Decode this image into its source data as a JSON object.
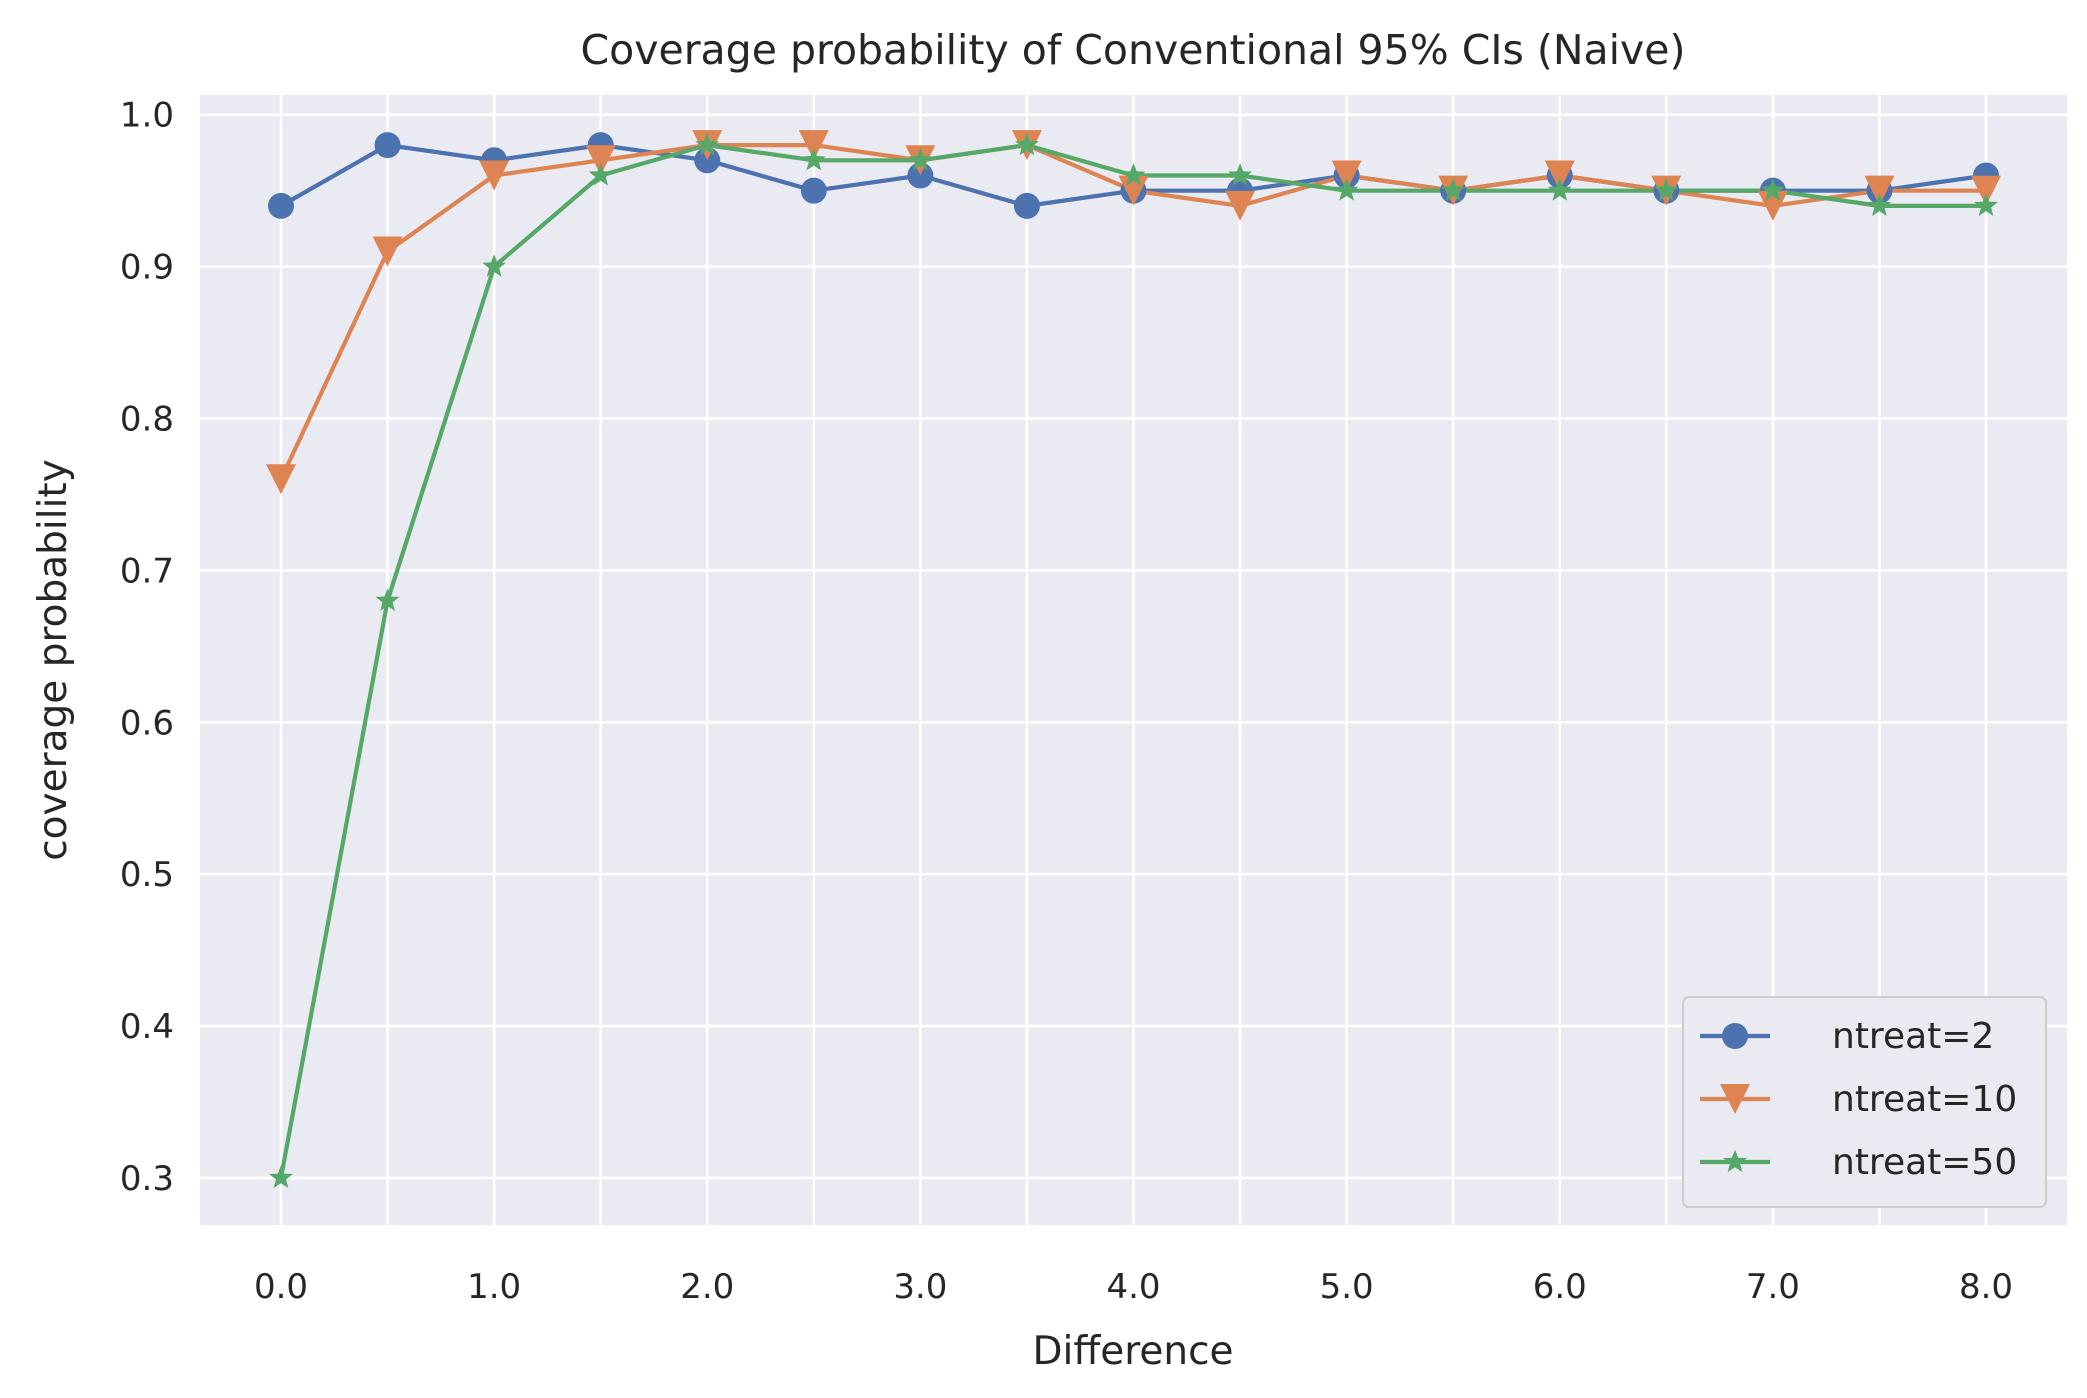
{
  "chart_data": {
    "type": "line",
    "title": "Coverage probability of Conventional 95% CIs (Naive)",
    "xlabel": "Difference",
    "ylabel": "coverage probability",
    "x": [
      0.0,
      0.5,
      1.0,
      1.5,
      2.0,
      2.5,
      3.0,
      3.5,
      4.0,
      4.5,
      5.0,
      5.5,
      6.0,
      6.5,
      7.0,
      7.5,
      8.0
    ],
    "xlim": [
      -0.38,
      8.38
    ],
    "ylim": [
      0.269,
      1.013
    ],
    "x_ticks": [
      0,
      1,
      2,
      3,
      4,
      5,
      6,
      7,
      8
    ],
    "x_tick_labels": [
      "0.0",
      "1.0",
      "2.0",
      "3.0",
      "4.0",
      "5.0",
      "6.0",
      "7.0",
      "8.0"
    ],
    "x_grid": [
      0,
      0.5,
      1,
      1.5,
      2,
      2.5,
      3,
      3.5,
      4,
      4.5,
      5,
      5.5,
      6,
      6.5,
      7,
      7.5,
      8
    ],
    "y_ticks": [
      0.3,
      0.4,
      0.5,
      0.6,
      0.7,
      0.8,
      0.9,
      1.0
    ],
    "y_tick_labels": [
      "0.3",
      "0.4",
      "0.5",
      "0.6",
      "0.7",
      "0.8",
      "0.9",
      "1.0"
    ],
    "grid": true,
    "background": "#eaeaf2",
    "legend_position": "lower-right",
    "series": [
      {
        "name": "ntreat=2",
        "marker": "circle",
        "color": "#4c72b0",
        "values": [
          0.94,
          0.98,
          0.97,
          0.98,
          0.97,
          0.95,
          0.96,
          0.94,
          0.95,
          0.95,
          0.96,
          0.95,
          0.96,
          0.95,
          0.95,
          0.95,
          0.96
        ]
      },
      {
        "name": "ntreat=10",
        "marker": "triangle-down",
        "color": "#dd8452",
        "values": [
          0.76,
          0.91,
          0.96,
          0.97,
          0.98,
          0.98,
          0.97,
          0.98,
          0.95,
          0.94,
          0.96,
          0.95,
          0.96,
          0.95,
          0.94,
          0.95,
          0.95
        ]
      },
      {
        "name": "ntreat=50",
        "marker": "star",
        "color": "#55a868",
        "values": [
          0.3,
          0.68,
          0.9,
          0.96,
          0.98,
          0.97,
          0.97,
          0.98,
          0.96,
          0.96,
          0.95,
          0.95,
          0.95,
          0.95,
          0.95,
          0.94,
          0.94
        ]
      }
    ]
  }
}
